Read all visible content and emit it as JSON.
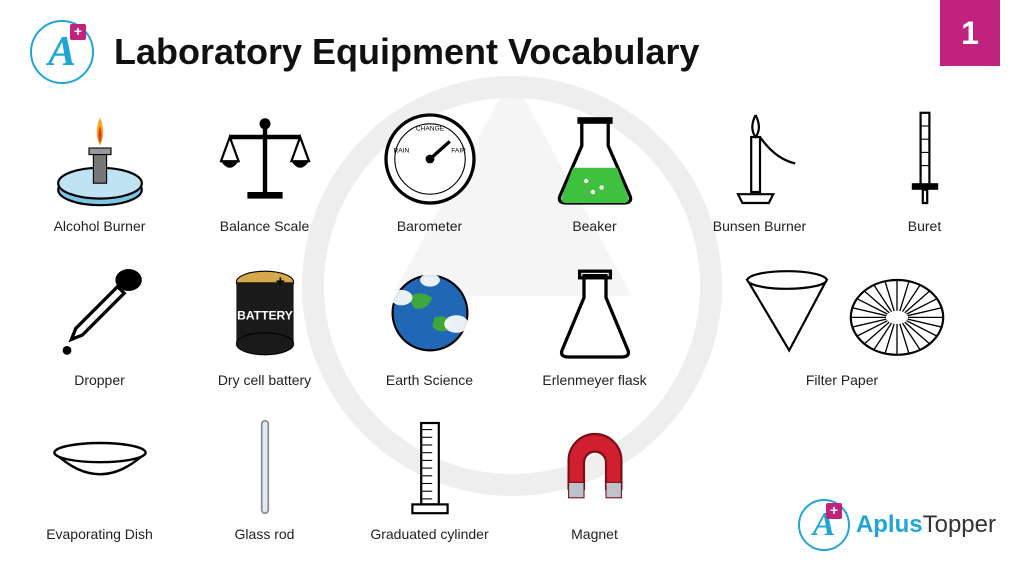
{
  "header": {
    "title": "Laboratory Equipment Vocabulary",
    "slide_number": "1",
    "logo_letter": "A",
    "logo_plus": "+"
  },
  "brand": {
    "primary_color": "#1fa5d8",
    "accent_color": "#c0237d",
    "footer_prefix": "Aplus",
    "footer_suffix": "Topper"
  },
  "items": [
    {
      "label": "Alcohol Burner",
      "icon": "alcohol-burner"
    },
    {
      "label": "Balance Scale",
      "icon": "balance-scale"
    },
    {
      "label": "Barometer",
      "icon": "barometer"
    },
    {
      "label": "Beaker",
      "icon": "beaker"
    },
    {
      "label": "Bunsen Burner",
      "icon": "bunsen-burner"
    },
    {
      "label": "Buret",
      "icon": "buret"
    },
    {
      "label": "Dropper",
      "icon": "dropper"
    },
    {
      "label": "Dry cell battery",
      "icon": "battery"
    },
    {
      "label": "Earth Science",
      "icon": "earth"
    },
    {
      "label": "Erlenmeyer flask",
      "icon": "erlenmeyer"
    },
    {
      "label": "Filter Paper",
      "icon": "filter-paper",
      "span": 2
    },
    {
      "label": "Evaporating Dish",
      "icon": "evaporating-dish"
    },
    {
      "label": "Glass rod",
      "icon": "glass-rod"
    },
    {
      "label": "Graduated cylinder",
      "icon": "graduated-cylinder"
    },
    {
      "label": "Magnet",
      "icon": "magnet"
    }
  ],
  "icon_colors": {
    "flame_outer": "#f7a823",
    "flame_inner": "#d93b1f",
    "glass_blue": "#7fc5e6",
    "beaker_green": "#3fc13f",
    "battery_body": "#1a1a1a",
    "battery_top": "#d4a84b",
    "earth_ocean": "#2067b5",
    "earth_land": "#3fa53f",
    "magnet_red": "#d01f2e",
    "magnet_gray": "#bcc4c9",
    "line": "#000000"
  }
}
